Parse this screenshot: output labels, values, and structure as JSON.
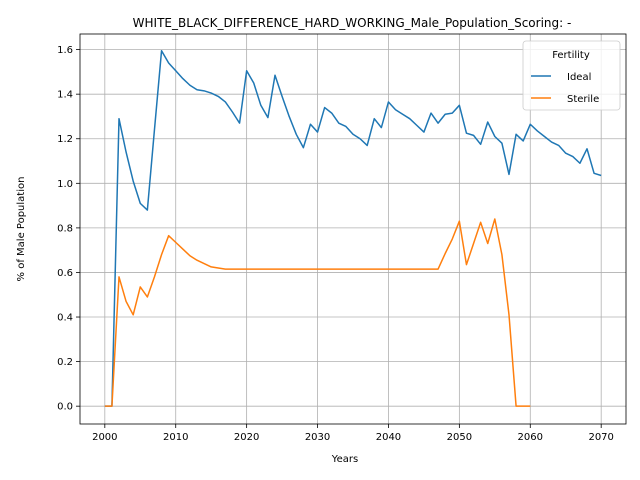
{
  "chart_data": {
    "type": "line",
    "title": "WHITE_BLACK_DIFFERENCE_HARD_WORKING_Male_Population_Scoring: -",
    "xlabel": "Years",
    "ylabel": "% of Male Population",
    "xlim": [
      1996.5,
      2073.5
    ],
    "ylim": [
      -0.08,
      1.67
    ],
    "xticks": [
      2000,
      2010,
      2020,
      2030,
      2040,
      2050,
      2060,
      2070
    ],
    "yticks": [
      0.0,
      0.2,
      0.4,
      0.6,
      0.8,
      1.0,
      1.2,
      1.4,
      1.6
    ],
    "grid": true,
    "legend": {
      "title": "Fertility",
      "position": "top-right"
    },
    "series": [
      {
        "name": "Ideal",
        "color": "#1f77b4",
        "x": [
          2000,
          2001,
          2002,
          2003,
          2004,
          2005,
          2006,
          2007,
          2008,
          2009,
          2010,
          2011,
          2012,
          2013,
          2014,
          2015,
          2016,
          2017,
          2018,
          2019,
          2020,
          2021,
          2022,
          2023,
          2024,
          2025,
          2026,
          2027,
          2028,
          2029,
          2030,
          2031,
          2032,
          2033,
          2034,
          2035,
          2036,
          2037,
          2038,
          2039,
          2040,
          2041,
          2042,
          2043,
          2044,
          2045,
          2046,
          2047,
          2048,
          2049,
          2050,
          2051,
          2052,
          2053,
          2054,
          2055,
          2056,
          2057,
          2058,
          2059,
          2060,
          2061,
          2062,
          2063,
          2064,
          2065,
          2066,
          2067,
          2068,
          2069,
          2070
        ],
        "y": [
          0.0,
          0.0,
          1.29,
          1.14,
          1.01,
          0.91,
          0.88,
          1.24,
          1.595,
          1.54,
          1.505,
          1.47,
          1.44,
          1.42,
          1.415,
          1.405,
          1.39,
          1.365,
          1.32,
          1.27,
          1.505,
          1.45,
          1.35,
          1.295,
          1.485,
          1.39,
          1.3,
          1.22,
          1.16,
          1.265,
          1.23,
          1.34,
          1.315,
          1.27,
          1.255,
          1.22,
          1.2,
          1.17,
          1.29,
          1.25,
          1.365,
          1.33,
          1.31,
          1.29,
          1.26,
          1.23,
          1.315,
          1.27,
          1.31,
          1.315,
          1.35,
          1.225,
          1.215,
          1.175,
          1.275,
          1.21,
          1.18,
          1.04,
          1.22,
          1.19,
          1.265,
          1.235,
          1.21,
          1.185,
          1.17,
          1.135,
          1.12,
          1.09,
          1.155,
          1.045,
          1.035
        ]
      },
      {
        "name": "Sterile",
        "color": "#ff7f0e",
        "x": [
          2000,
          2001,
          2002,
          2003,
          2004,
          2005,
          2006,
          2007,
          2008,
          2009,
          2010,
          2011,
          2012,
          2013,
          2014,
          2015,
          2016,
          2017,
          2018,
          2019,
          2020,
          2021,
          2022,
          2023,
          2024,
          2025,
          2026,
          2027,
          2028,
          2029,
          2030,
          2031,
          2032,
          2033,
          2034,
          2035,
          2036,
          2037,
          2038,
          2039,
          2040,
          2041,
          2042,
          2043,
          2044,
          2045,
          2046,
          2047,
          2048,
          2049,
          2050,
          2051,
          2052,
          2053,
          2054,
          2055,
          2056,
          2057,
          2058,
          2059,
          2060
        ],
        "y": [
          0.0,
          0.0,
          0.58,
          0.47,
          0.41,
          0.535,
          0.49,
          0.58,
          0.68,
          0.765,
          0.735,
          0.705,
          0.675,
          0.655,
          0.64,
          0.625,
          0.62,
          0.615,
          0.615,
          0.615,
          0.615,
          0.615,
          0.615,
          0.615,
          0.615,
          0.615,
          0.615,
          0.615,
          0.615,
          0.615,
          0.615,
          0.615,
          0.615,
          0.615,
          0.615,
          0.615,
          0.615,
          0.615,
          0.615,
          0.615,
          0.615,
          0.615,
          0.615,
          0.615,
          0.615,
          0.615,
          0.615,
          0.615,
          0.685,
          0.75,
          0.83,
          0.635,
          0.73,
          0.825,
          0.73,
          0.84,
          0.68,
          0.41,
          0.0,
          0.0,
          0.0
        ]
      }
    ]
  }
}
